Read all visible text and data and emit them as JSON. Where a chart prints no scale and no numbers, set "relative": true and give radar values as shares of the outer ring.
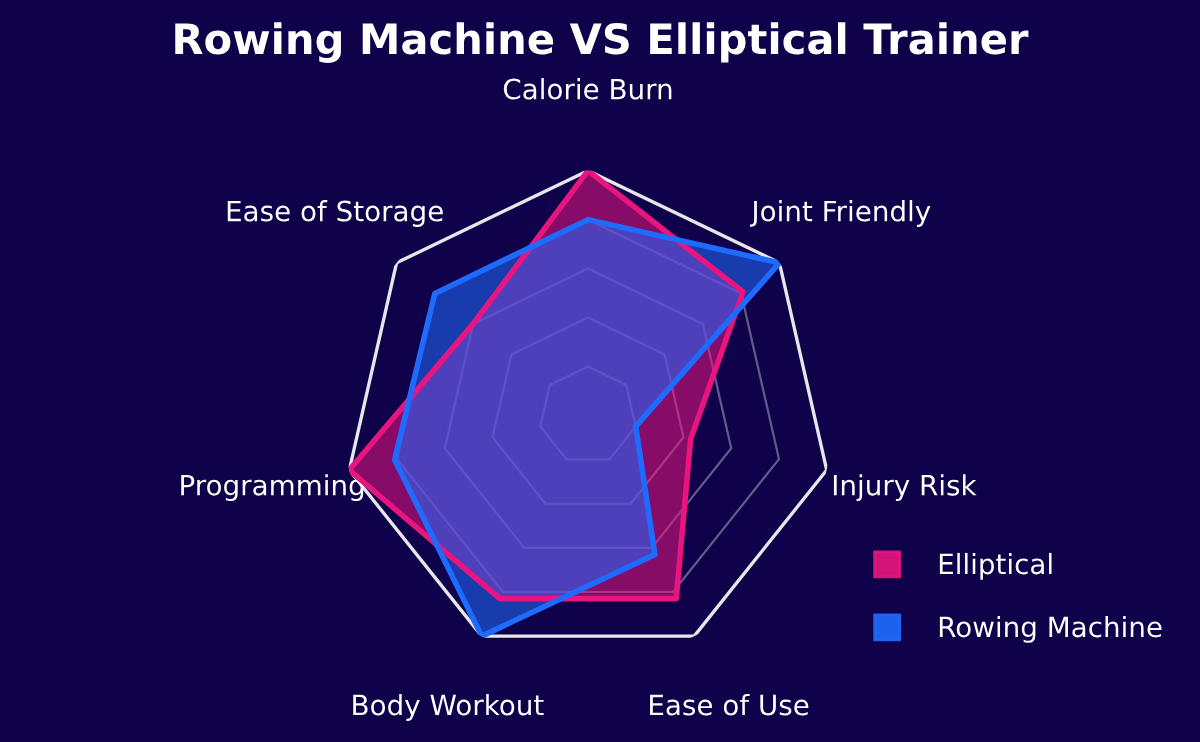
{
  "chart_data": {
    "type": "radar",
    "relative": true,
    "title": "Rowing Machine VS Elliptical Trainer",
    "categories": [
      "Calorie Burn",
      "Joint Friendly",
      "Injury Risk",
      "Ease of Use",
      "Body Workout",
      "Programming",
      "Ease of Storage"
    ],
    "series": [
      {
        "name": "Elliptical",
        "color": "#e8157f",
        "values": [
          1.0,
          0.81,
          0.43,
          0.83,
          0.83,
          1.0,
          0.6
        ]
      },
      {
        "name": "Rowing Machine",
        "color": "#1f6bff",
        "values": [
          0.8,
          1.0,
          0.2,
          0.63,
          1.0,
          0.81,
          0.8
        ]
      }
    ],
    "legend": "bottom right",
    "grid": true
  }
}
